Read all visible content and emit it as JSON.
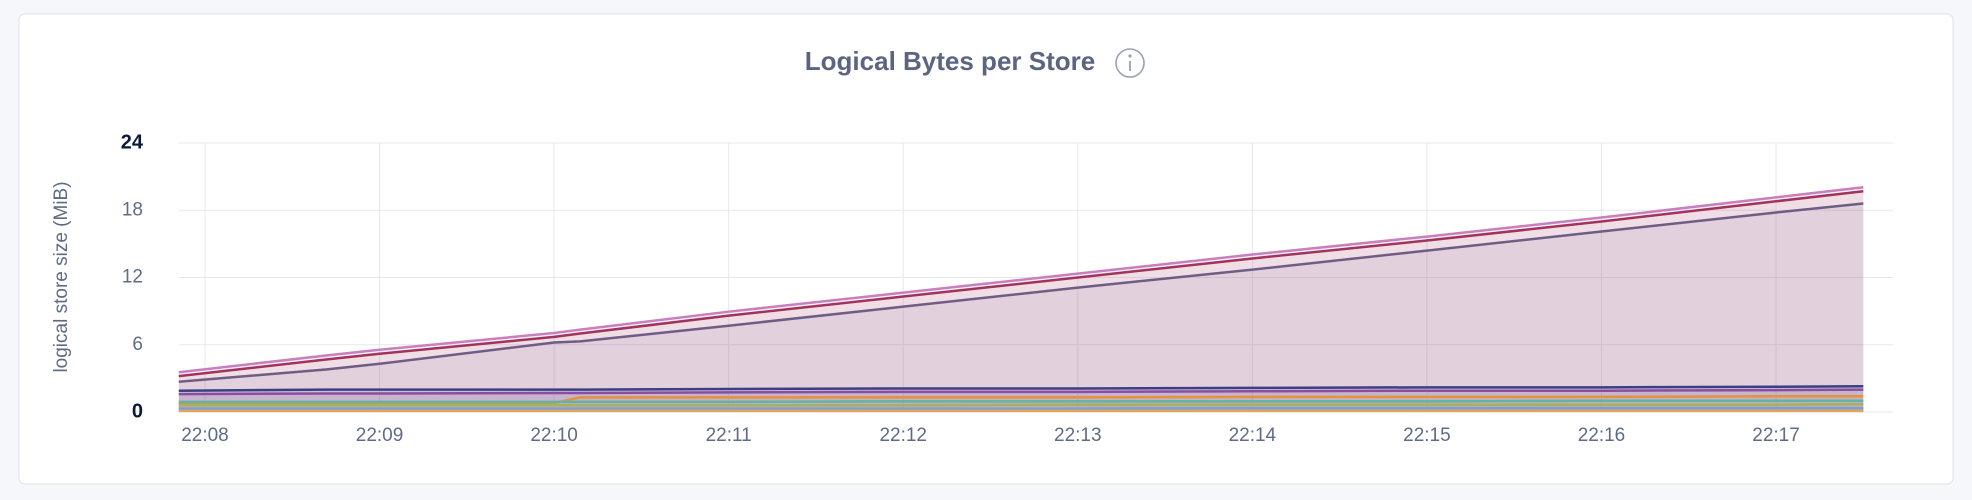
{
  "chart_data": {
    "type": "area",
    "title": "Logical Bytes per Store",
    "y_label": "logical store size (MiB)",
    "x": [
      1327.85,
      1328.7,
      1329,
      1330,
      1330.15,
      1331,
      1332,
      1333,
      1334,
      1335,
      1336,
      1337,
      1337.5
    ],
    "xlim": [
      1327.85,
      1337.67
    ],
    "xticks": [
      {
        "value": 1328,
        "label": "22:08"
      },
      {
        "value": 1329,
        "label": "22:09"
      },
      {
        "value": 1330,
        "label": "22:10"
      },
      {
        "value": 1331,
        "label": "22:11"
      },
      {
        "value": 1332,
        "label": "22:12"
      },
      {
        "value": 1333,
        "label": "22:13"
      },
      {
        "value": 1334,
        "label": "22:14"
      },
      {
        "value": 1335,
        "label": "22:15"
      },
      {
        "value": 1336,
        "label": "22:16"
      },
      {
        "value": 1337,
        "label": "22:17"
      }
    ],
    "ylim": [
      0,
      24
    ],
    "yticks": [
      0,
      6,
      12,
      18,
      24
    ],
    "grid": true,
    "series": [
      {
        "color": "#c97fbf",
        "values": [
          3.55,
          5.05,
          5.55,
          7.05,
          7.35,
          8.95,
          10.65,
          12.35,
          14.05,
          15.65,
          17.35,
          19.15,
          20.05
        ]
      },
      {
        "color": "#a2335a",
        "values": [
          3.2,
          4.7,
          5.2,
          6.7,
          7.0,
          8.6,
          10.3,
          12.0,
          13.7,
          15.3,
          17.0,
          18.8,
          19.7
        ]
      },
      {
        "color": "#6f5d86",
        "values": [
          2.7,
          3.8,
          4.3,
          6.2,
          6.3,
          7.7,
          9.4,
          11.1,
          12.7,
          14.4,
          16.1,
          17.8,
          18.6
        ]
      },
      {
        "color": "#3b3f85",
        "values": [
          1.9,
          2.0,
          2.0,
          2.0,
          2.0,
          2.05,
          2.1,
          2.1,
          2.15,
          2.2,
          2.2,
          2.25,
          2.3
        ]
      },
      {
        "color": "#8a4ea0",
        "values": [
          1.6,
          1.65,
          1.65,
          1.7,
          1.7,
          1.75,
          1.8,
          1.8,
          1.85,
          1.9,
          1.9,
          1.95,
          2.0
        ]
      },
      {
        "color": "#e0943d",
        "values": [
          0.8,
          0.8,
          0.8,
          0.8,
          1.3,
          1.3,
          1.3,
          1.3,
          1.35,
          1.35,
          1.35,
          1.4,
          1.4
        ]
      },
      {
        "color": "#5fb3a8",
        "values": [
          0.9,
          0.9,
          0.9,
          0.9,
          0.9,
          0.9,
          0.95,
          0.95,
          0.95,
          0.95,
          1.0,
          1.0,
          1.0
        ]
      },
      {
        "color": "#a8b060",
        "values": [
          0.6,
          0.6,
          0.6,
          0.6,
          0.6,
          0.6,
          0.6,
          0.65,
          0.65,
          0.65,
          0.65,
          0.65,
          0.7
        ]
      },
      {
        "color": "#7a9fd4",
        "values": [
          0.3,
          0.3,
          0.3,
          0.3,
          0.3,
          0.3,
          0.3,
          0.3,
          0.35,
          0.35,
          0.35,
          0.35,
          0.35
        ]
      },
      {
        "color": "#e5a45a",
        "values": [
          0.1,
          0.1,
          0.1,
          0.1,
          0.1,
          0.1,
          0.1,
          0.1,
          0.1,
          0.1,
          0.1,
          0.1,
          0.1
        ]
      }
    ]
  }
}
